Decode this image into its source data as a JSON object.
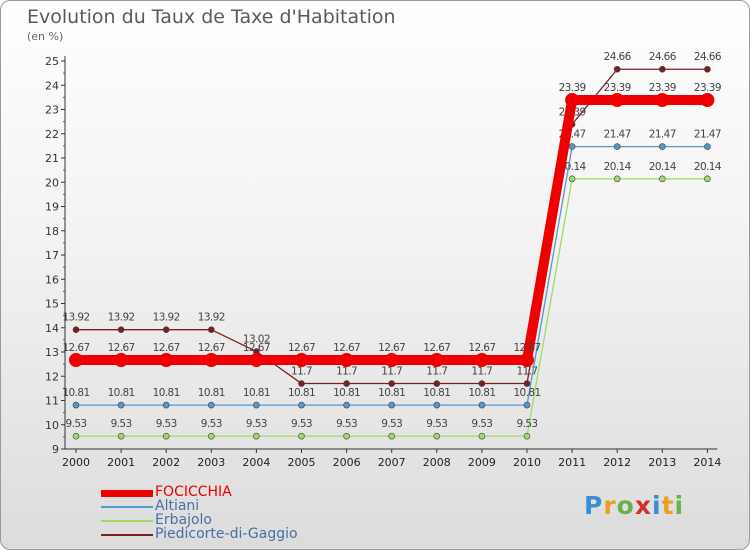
{
  "title": "Evolution du Taux de Taxe d'Habitation",
  "subtitle": "(en %)",
  "logo": "Proxiti",
  "chart_data": {
    "type": "line",
    "title": "Evolution du Taux de Taxe d'Habitation",
    "ylabel": "(en %)",
    "xlabel": "",
    "categories": [
      "2000",
      "2001",
      "2002",
      "2003",
      "2004",
      "2005",
      "2006",
      "2007",
      "2008",
      "2009",
      "2010",
      "2011",
      "2012",
      "2013",
      "2014"
    ],
    "ylim": [
      9,
      25
    ],
    "yticks": [
      9,
      10,
      11,
      12,
      13,
      14,
      15,
      16,
      17,
      18,
      19,
      20,
      21,
      22,
      23,
      24,
      25
    ],
    "grid": false,
    "legend_position": "bottom-left",
    "series": [
      {
        "name": "Piedicorte-di-Gaggio",
        "color": "#7a1f1f",
        "values": [
          13.92,
          13.92,
          13.92,
          13.92,
          13.02,
          11.7,
          11.7,
          11.7,
          11.7,
          11.7,
          11.7,
          22.39,
          24.66,
          24.66,
          24.66
        ],
        "labels": [
          "13.92",
          "13.92",
          "13.92",
          "13.92",
          "13.02",
          "11.7",
          "11.7",
          "11.7",
          "11.7",
          "11.7",
          "11.7",
          "22.39",
          "24.66",
          "24.66",
          "24.66"
        ]
      },
      {
        "name": "Erbajolo",
        "color": "#99dd66",
        "values": [
          9.53,
          9.53,
          9.53,
          9.53,
          9.53,
          9.53,
          9.53,
          9.53,
          9.53,
          9.53,
          9.53,
          20.14,
          20.14,
          20.14,
          20.14
        ],
        "labels": [
          "9.53",
          "9.53",
          "9.53",
          "9.53",
          "9.53",
          "9.53",
          "9.53",
          "9.53",
          "9.53",
          "9.53",
          "9.53",
          "20.14",
          "20.14",
          "20.14",
          "20.14"
        ]
      },
      {
        "name": "Altiani",
        "color": "#5599cc",
        "values": [
          10.81,
          10.81,
          10.81,
          10.81,
          10.81,
          10.81,
          10.81,
          10.81,
          10.81,
          10.81,
          10.81,
          21.47,
          21.47,
          21.47,
          21.47
        ],
        "labels": [
          "10.81",
          "10.81",
          "10.81",
          "10.81",
          "10.81",
          "10.81",
          "10.81",
          "10.81",
          "10.81",
          "10.81",
          "10.81",
          "21.47",
          "21.47",
          "21.47",
          "21.47"
        ]
      },
      {
        "name": "FOCICCHIA",
        "color": "#ee0000",
        "values": [
          12.67,
          12.67,
          12.67,
          12.67,
          12.67,
          12.67,
          12.67,
          12.67,
          12.67,
          12.67,
          12.67,
          23.39,
          23.39,
          23.39,
          23.39
        ],
        "labels": [
          "12.67",
          "12.67",
          "12.67",
          "12.67",
          "12.67",
          "12.67",
          "12.67",
          "12.67",
          "12.67",
          "12.67",
          "12.67",
          "23.39",
          "23.39",
          "23.39",
          "23.39"
        ]
      }
    ]
  },
  "legend": [
    {
      "name": "FOCICCHIA",
      "color": "#ee0000"
    },
    {
      "name": "Altiani",
      "color": "#5599cc"
    },
    {
      "name": "Erbajolo",
      "color": "#99dd66"
    },
    {
      "name": "Piedicorte-di-Gaggio",
      "color": "#7a1f1f"
    }
  ]
}
